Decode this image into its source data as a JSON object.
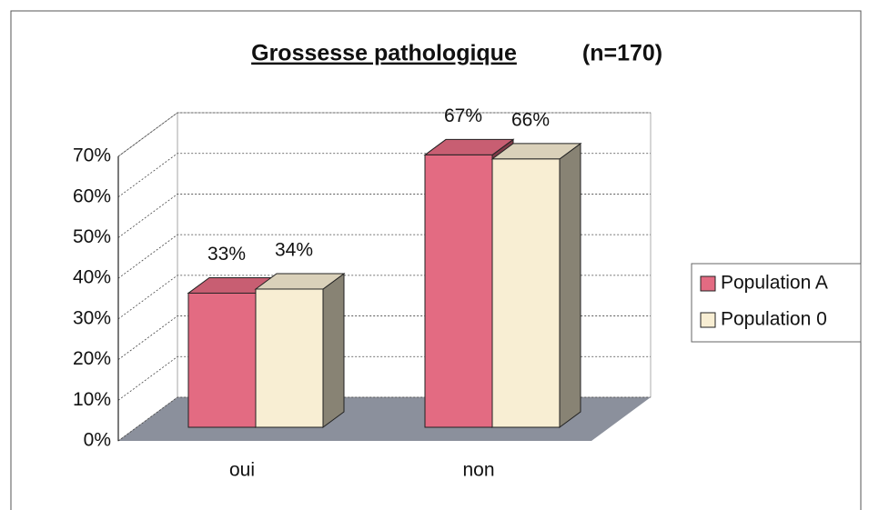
{
  "chart_data": {
    "type": "bar3d",
    "title": "Grossesse pathologique",
    "subtitle": "(n=170)",
    "categories": [
      "oui",
      "non"
    ],
    "series": [
      {
        "name": "Population A",
        "color": "#e36b82",
        "values": [
          33,
          67
        ],
        "value_labels": [
          "33%",
          "67%"
        ]
      },
      {
        "name": "Population 0",
        "color": "#f8eed3",
        "values": [
          34,
          66
        ],
        "value_labels": [
          "34%",
          "66%"
        ]
      }
    ],
    "ylim": [
      0,
      70
    ],
    "yticks": [
      {
        "value": 0,
        "label": "0%"
      },
      {
        "value": 10,
        "label": "10%"
      },
      {
        "value": 20,
        "label": "20%"
      },
      {
        "value": 30,
        "label": "30%"
      },
      {
        "value": 40,
        "label": "40%"
      },
      {
        "value": 50,
        "label": "50%"
      },
      {
        "value": 60,
        "label": "60%"
      },
      {
        "value": 70,
        "label": "70%"
      }
    ],
    "grid": true,
    "legend": "right"
  }
}
